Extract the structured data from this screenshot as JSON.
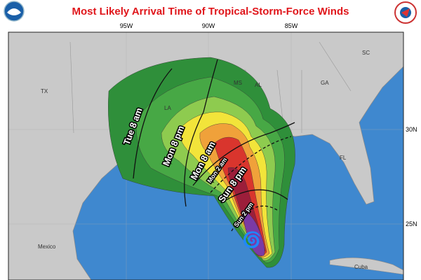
{
  "header": {
    "title": "Most Likely Arrival Time of Tropical-Storm-Force Winds"
  },
  "map": {
    "longitude_labels": [
      "95W",
      "90W",
      "85W"
    ],
    "latitude_labels": [
      "30N",
      "25N"
    ],
    "region_labels": [
      "TX",
      "LA",
      "MS",
      "AL",
      "GA",
      "SC",
      "FL",
      "Mexico",
      "Cuba"
    ],
    "time_labels": [
      "Tue 8 am",
      "Mon 8 pm",
      "Mon 8 am",
      "Mon 2 am",
      "Sun 8 pm",
      "Sun 2 pm"
    ]
  }
}
